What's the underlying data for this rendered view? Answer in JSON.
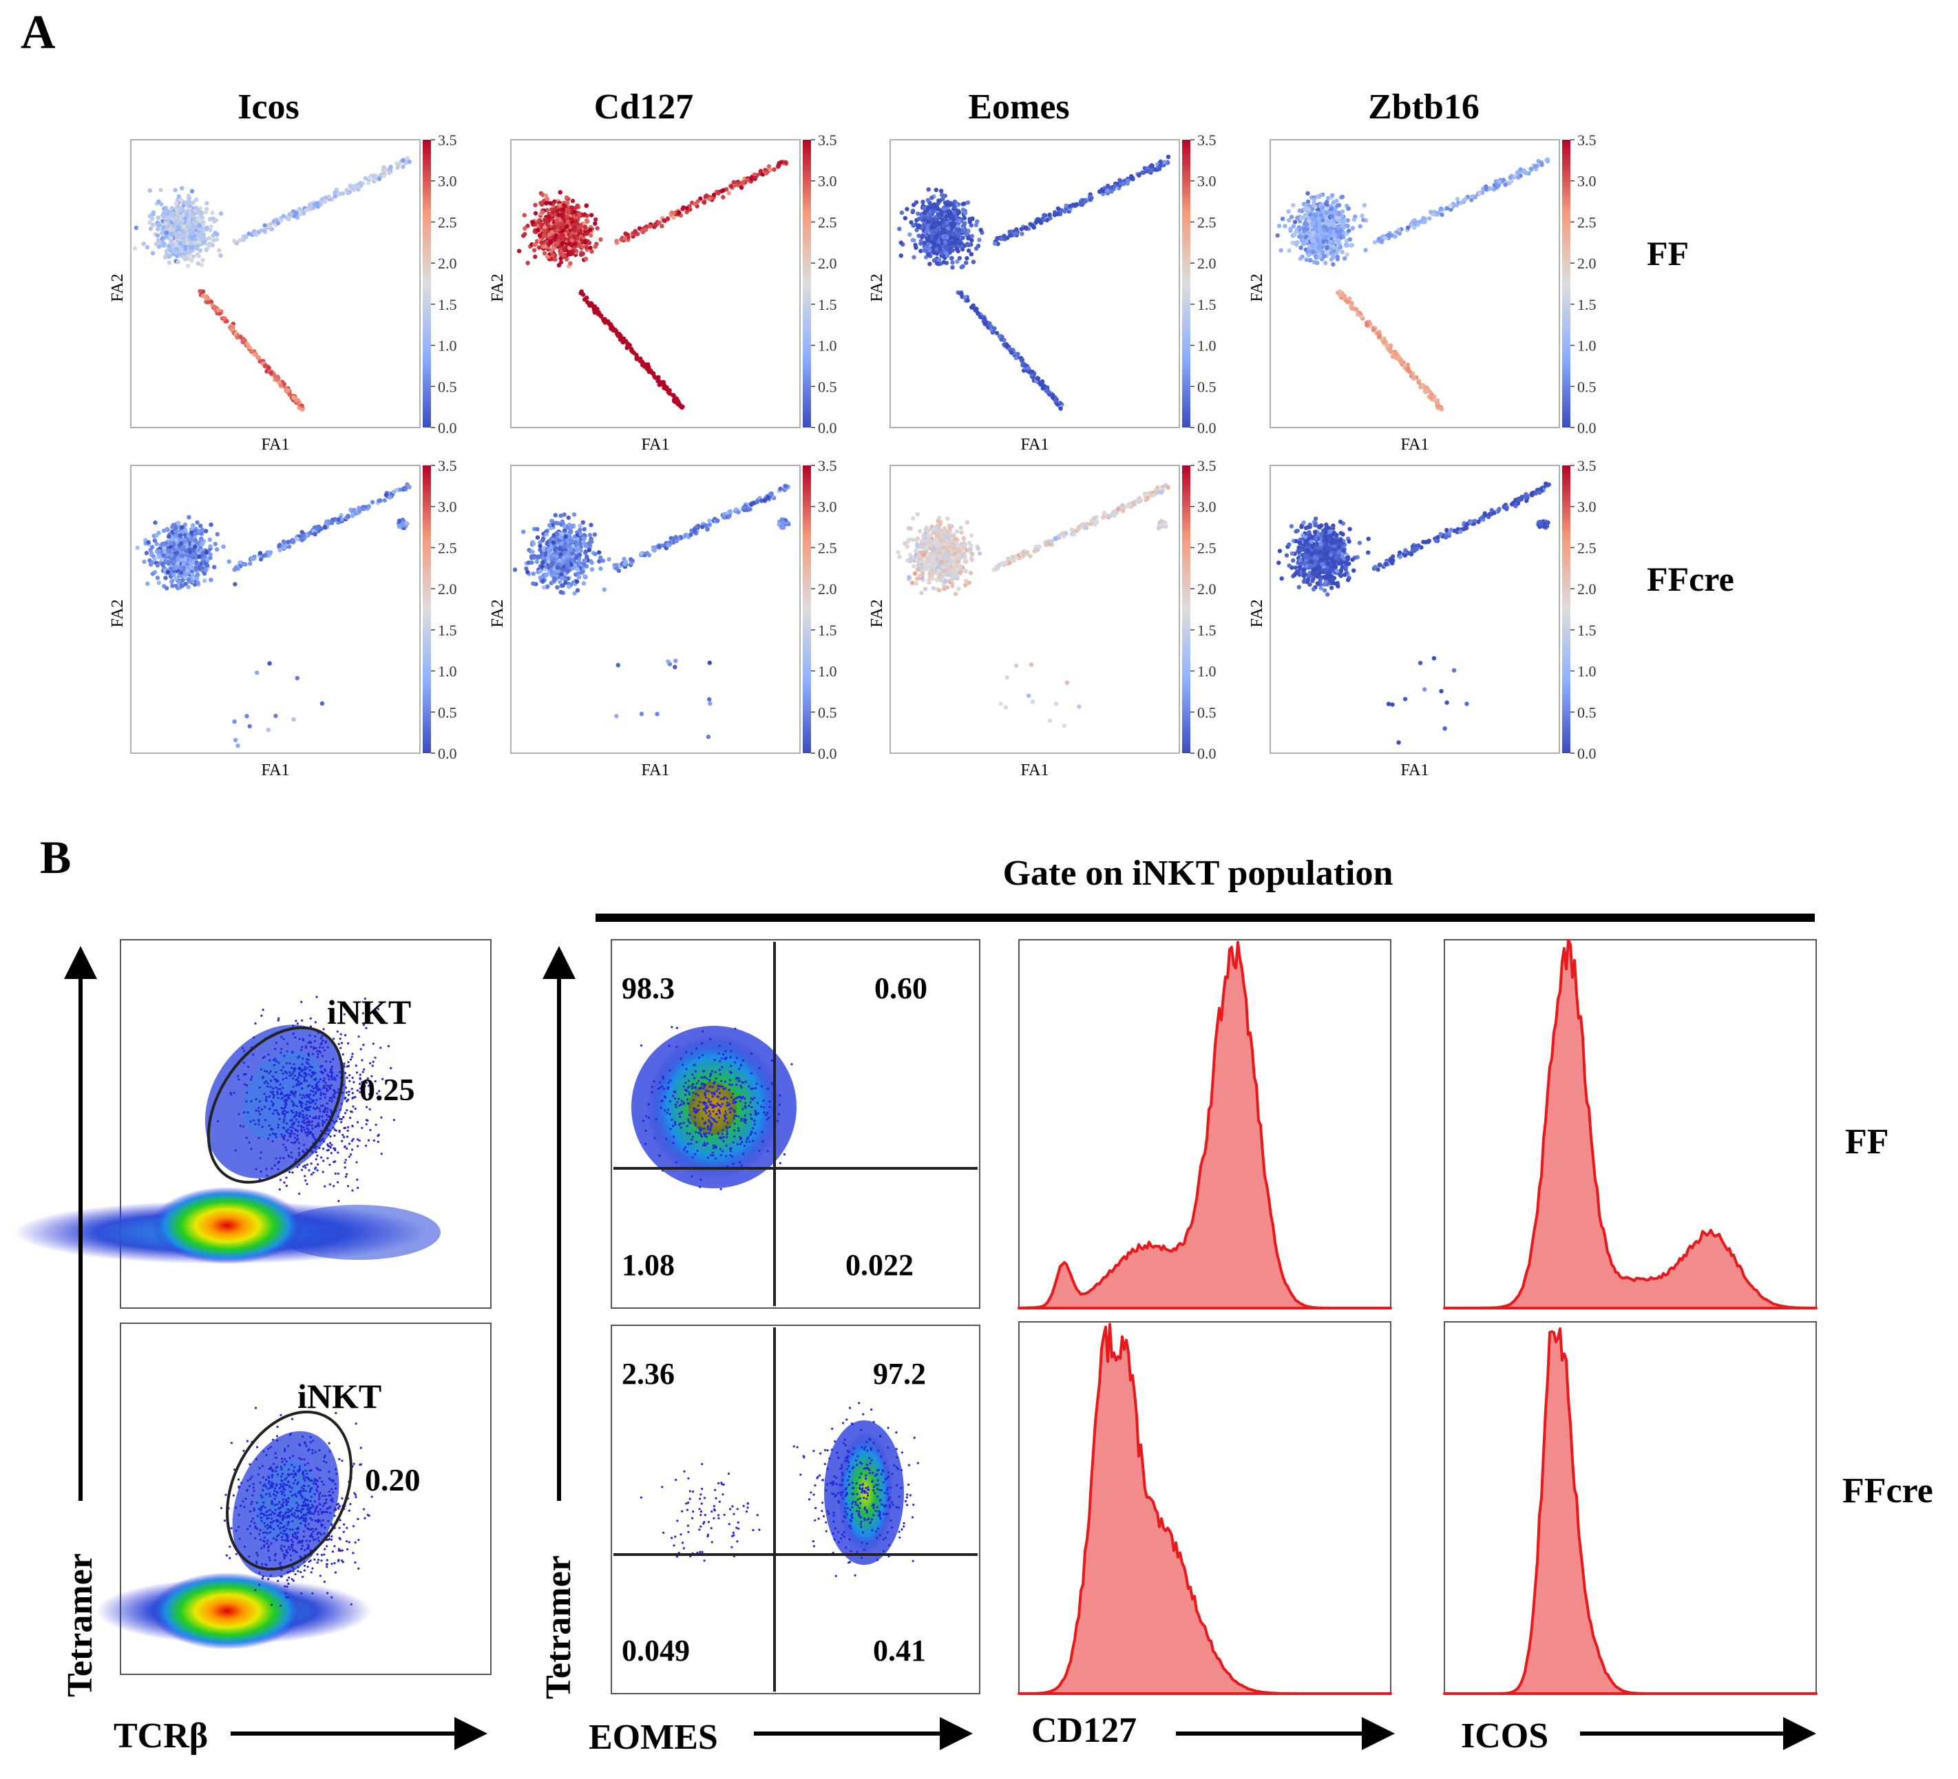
{
  "panel_a": {
    "label": "A",
    "genes": [
      "Icos",
      "Cd127",
      "Eomes",
      "Zbtb16"
    ],
    "rows": [
      "FF",
      "FFcre"
    ],
    "x_axis_label": "FA1",
    "y_axis_label": "FA2",
    "colorbar_ticks": [
      "0.0",
      "0.5",
      "1.0",
      "1.5",
      "2.0",
      "2.5",
      "3.0",
      "3.5"
    ],
    "colorbar_range": [
      0.0,
      3.5
    ],
    "colors": {
      "low": "#3b4cc0",
      "mid": "#dddddd",
      "high": "#b40426"
    },
    "expression_level": {
      "FF": {
        "Icos": 1.3,
        "Cd127": 3.2,
        "Eomes": 0.1,
        "Zbtb16": 0.9
      },
      "FFcre": {
        "Icos": 0.6,
        "Cd127": 0.5,
        "Eomes": 1.8,
        "Zbtb16": 0.1
      }
    }
  },
  "panel_b": {
    "label": "B",
    "title": "Gate on iNKT population",
    "rows": [
      "FF",
      "FFcre"
    ],
    "gate_label": "iNKT",
    "gate_values": {
      "FF": "0.25",
      "FFcre": "0.20"
    },
    "x_labels": {
      "tcr": "TCRβ",
      "eomes": "EOMES",
      "cd127": "CD127",
      "icos": "ICOS"
    },
    "y_label": "Tetramer",
    "quadrants": {
      "FF": {
        "ul": "98.3",
        "ur": "0.60",
        "ll": "1.08",
        "lr": "0.022"
      },
      "FFcre": {
        "ul": "2.36",
        "ur": "97.2",
        "ll": "0.049",
        "lr": "0.41"
      }
    },
    "colors": {
      "histogram_fill": "#f28b8b",
      "histogram_line": "#e8191b"
    }
  }
}
